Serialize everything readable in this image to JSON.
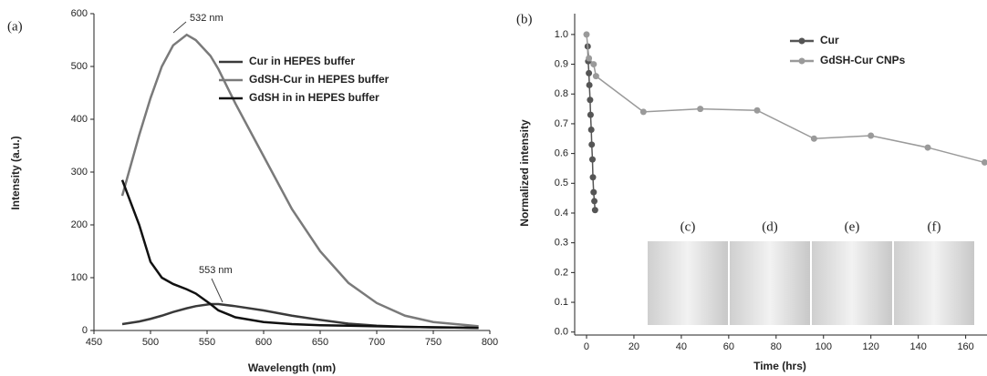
{
  "chart_data": [
    {
      "type": "line",
      "panel_label": "(a)",
      "x_label": "Wavelength (nm)",
      "y_label": "Intensity (a.u.)",
      "annotations": [
        "532 nm",
        "553 nm"
      ],
      "x": [
        475,
        490,
        500,
        510,
        520,
        532,
        540,
        553,
        560,
        575,
        600,
        625,
        650,
        675,
        700,
        725,
        750,
        790
      ],
      "series": [
        {
          "name": "Cur in HEPES buffer",
          "color": "#3a3a3a",
          "values": [
            12,
            17,
            22,
            28,
            35,
            42,
            46,
            50,
            50,
            46,
            38,
            28,
            20,
            13,
            9,
            7,
            6,
            5
          ]
        },
        {
          "name": "GdSH-Cur  in HEPES buffer",
          "color": "#7a7a7a",
          "values": [
            255,
            370,
            440,
            500,
            540,
            560,
            550,
            520,
            495,
            430,
            330,
            230,
            150,
            90,
            52,
            28,
            16,
            8
          ]
        },
        {
          "name": "GdSH in  in HEPES buffer",
          "color": "#111111",
          "values": [
            285,
            200,
            130,
            100,
            88,
            78,
            70,
            50,
            38,
            25,
            16,
            12,
            10,
            9,
            8,
            7,
            6,
            5
          ]
        }
      ],
      "xlim": [
        450,
        800
      ],
      "xticks": [
        450,
        500,
        550,
        600,
        650,
        700,
        750,
        800
      ],
      "ylim": [
        0,
        600
      ],
      "yticks": [
        0,
        100,
        200,
        300,
        400,
        500,
        600
      ]
    },
    {
      "type": "line",
      "markers": true,
      "panel_label": "(b)",
      "x_label": "Time (hrs)",
      "y_label": "Normalized intensity",
      "series": [
        {
          "name": "Cur",
          "color": "#555555",
          "x": [
            0.5,
            0.7,
            1,
            1.2,
            1.5,
            1.7,
            2,
            2.2,
            2.5,
            2.7,
            3,
            3.3,
            3.6
          ],
          "values": [
            0.96,
            0.91,
            0.87,
            0.83,
            0.78,
            0.73,
            0.68,
            0.63,
            0.58,
            0.52,
            0.47,
            0.44,
            0.41
          ]
        },
        {
          "name": "GdSH-Cur CNPs",
          "color": "#9a9a9a",
          "x": [
            0,
            1,
            3,
            4,
            24,
            48,
            72,
            96,
            120,
            144,
            168
          ],
          "values": [
            1.0,
            0.92,
            0.9,
            0.86,
            0.74,
            0.75,
            0.745,
            0.65,
            0.66,
            0.62,
            0.57
          ]
        }
      ],
      "xlim": [
        -5,
        169
      ],
      "xticks": [
        0,
        20,
        40,
        60,
        80,
        100,
        120,
        140,
        160
      ],
      "ylim": [
        -0.01,
        1.07
      ],
      "yticks": [
        {
          "value": 0,
          "label": "0.0"
        },
        0.1,
        0.2,
        0.3,
        0.4,
        0.5,
        0.6,
        0.7,
        0.8,
        0.9,
        {
          "value": 1,
          "label": "1.0"
        }
      ]
    }
  ],
  "photos": {
    "labels": [
      "(c)",
      "(d)",
      "(e)",
      "(f)"
    ]
  }
}
